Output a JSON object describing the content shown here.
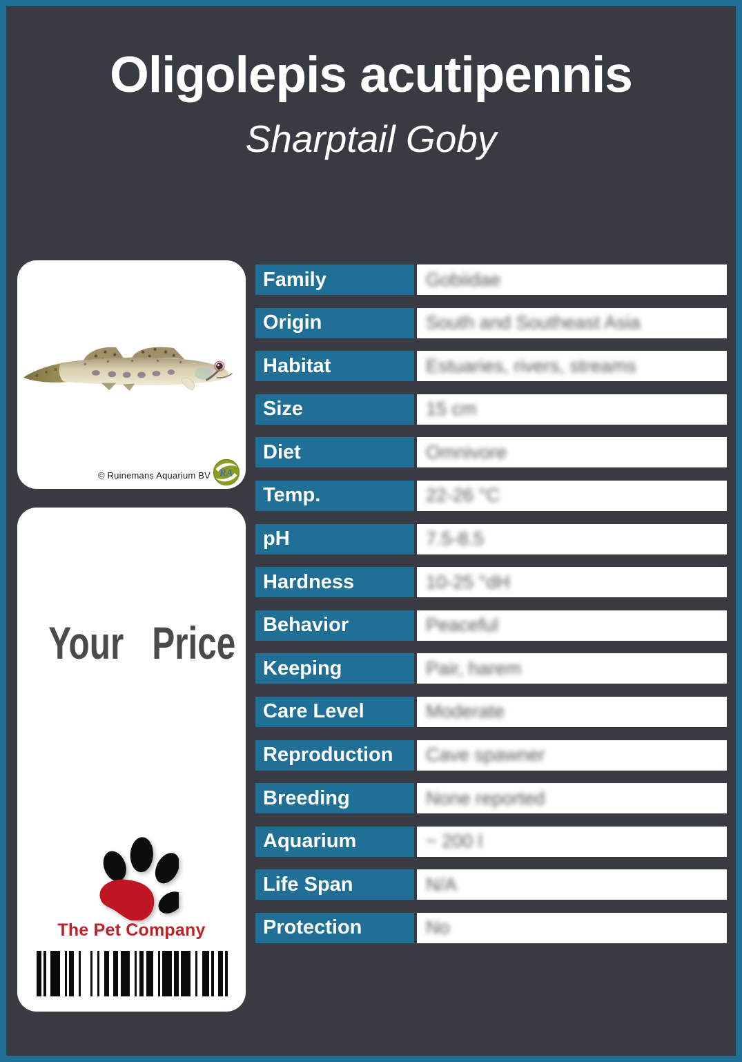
{
  "header": {
    "scientific_name": "Oligolepis acutipennis",
    "common_name": "Sharptail Goby"
  },
  "photo_card": {
    "subject": "sharptail goby side view photo",
    "credit": "© Ruinemans Aquarium BV",
    "watermark_text": "RA"
  },
  "price_card": {
    "price_label": "Your Price",
    "company_name": "The Pet Company",
    "barcode_units": [
      [
        2,
        1
      ],
      [
        1,
        2
      ],
      [
        4,
        2
      ],
      [
        1,
        1
      ],
      [
        2,
        2
      ],
      [
        1,
        4
      ],
      [
        1,
        2
      ],
      [
        1,
        2
      ],
      [
        2,
        2
      ],
      [
        2,
        1
      ],
      [
        4,
        2
      ],
      [
        1,
        1
      ],
      [
        2,
        1
      ],
      [
        3,
        2
      ],
      [
        1,
        1
      ],
      [
        4,
        1
      ],
      [
        2,
        1
      ],
      [
        4,
        2
      ],
      [
        1,
        2
      ],
      [
        3,
        1
      ],
      [
        1,
        2
      ],
      [
        2,
        1
      ],
      [
        1,
        0
      ]
    ]
  },
  "table": {
    "rows": [
      {
        "label": "Family",
        "value": "Gobiidae"
      },
      {
        "label": "Origin",
        "value": "South and Southeast Asia"
      },
      {
        "label": "Habitat",
        "value": "Estuaries, rivers, streams"
      },
      {
        "label": "Size",
        "value": "15 cm"
      },
      {
        "label": "Diet",
        "value": "Omnivore"
      },
      {
        "label": "Temp.",
        "value": "22-26 °C"
      },
      {
        "label": "pH",
        "value": "7.5-8.5"
      },
      {
        "label": "Hardness",
        "value": "10-25 °dH"
      },
      {
        "label": "Behavior",
        "value": "Peaceful"
      },
      {
        "label": "Keeping",
        "value": "Pair, harem"
      },
      {
        "label": "Care Level",
        "value": "Moderate"
      },
      {
        "label": "Reproduction",
        "value": "Cave spawner"
      },
      {
        "label": "Breeding",
        "value": "None reported"
      },
      {
        "label": "Aquarium",
        "value": "~ 200 l"
      },
      {
        "label": "Life Span",
        "value": "N/A"
      },
      {
        "label": "Protection",
        "value": "No"
      }
    ]
  },
  "colors": {
    "accent_teal": "#206f96",
    "background_dark": "#383b42",
    "brand_red": "#c01f26",
    "card_white": "#ffffff"
  },
  "icons": {
    "brand_logo": "paw-icon",
    "photo_watermark": "ra-aquarium-logo-icon"
  }
}
